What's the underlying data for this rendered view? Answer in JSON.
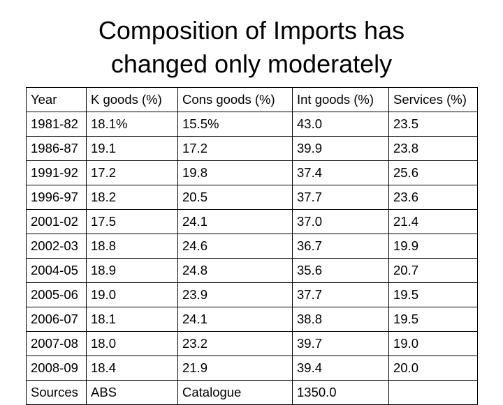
{
  "slide": {
    "title_line1": "Composition of Imports has",
    "title_line2": "changed only moderately"
  },
  "table": {
    "headers": [
      "Year",
      "K goods (%)",
      "Cons goods (%)",
      "Int goods (%)",
      "Services (%)"
    ],
    "rows": [
      [
        "1981-82",
        "18.1%",
        "15.5%",
        "43.0",
        "23.5"
      ],
      [
        "1986-87",
        "19.1",
        "17.2",
        "39.9",
        "23.8"
      ],
      [
        "1991-92",
        "17.2",
        "19.8",
        "37.4",
        "25.6"
      ],
      [
        "1996-97",
        "18.2",
        "20.5",
        "37.7",
        "23.6"
      ],
      [
        "2001-02",
        "17.5",
        "24.1",
        "37.0",
        "21.4"
      ],
      [
        "2002-03",
        "18.8",
        "24.6",
        "36.7",
        "19.9"
      ],
      [
        "2004-05",
        "18.9",
        "24.8",
        "35.6",
        "20.7"
      ],
      [
        "2005-06",
        "19.0",
        "23.9",
        "37.7",
        "19.5"
      ],
      [
        "2006-07",
        "18.1",
        "24.1",
        "38.8",
        "19.5"
      ],
      [
        "2007-08",
        "18.0",
        "23.2",
        "39.7",
        "19.0"
      ],
      [
        "2008-09",
        "18.4",
        "21.9",
        "39.4",
        "20.0"
      ]
    ],
    "footer": [
      "Sources",
      "ABS",
      "Catalogue",
      "1350.0",
      ""
    ]
  }
}
